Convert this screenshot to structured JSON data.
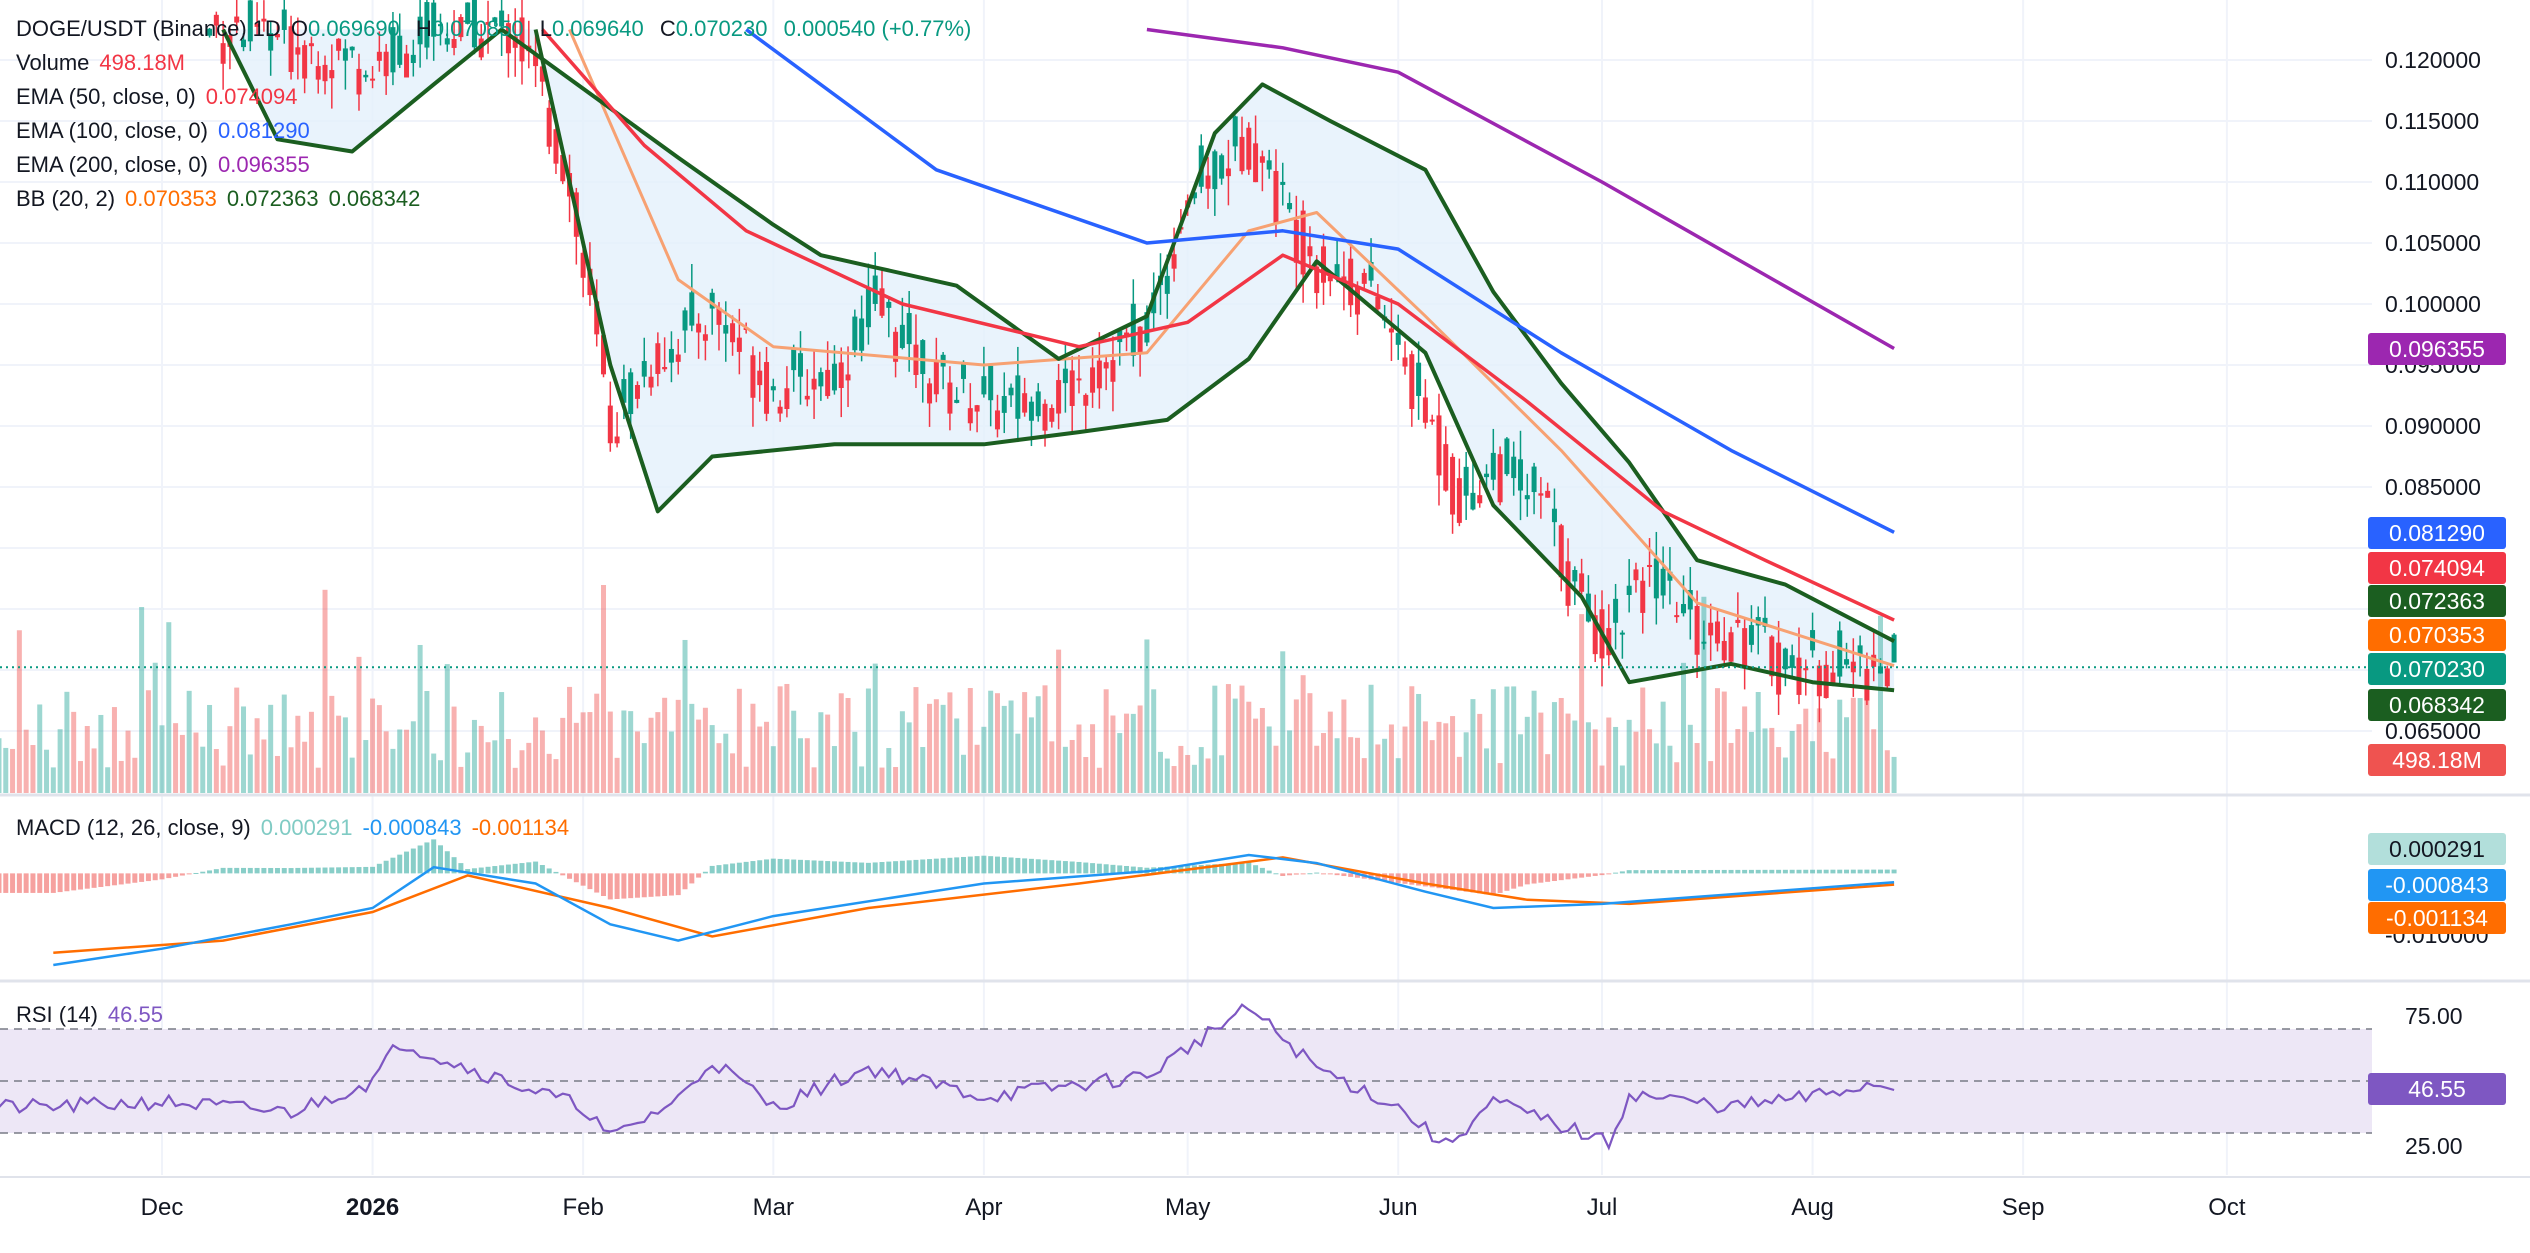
{
  "header": {
    "symbol": "DOGE/USDT (Binance)",
    "interval": "1D",
    "open_label": "O",
    "open": "0.069690",
    "high_label": "H",
    "high": "0.070850",
    "low_label": "L",
    "low": "0.069640",
    "close_label": "C",
    "close": "0.070230",
    "change": "0.000540 (+0.77%)"
  },
  "legend": {
    "volume": {
      "label": "Volume",
      "value": "498.18M"
    },
    "ema50": {
      "label": "EMA (50, close, 0)",
      "value": "0.074094"
    },
    "ema100": {
      "label": "EMA (100, close, 0)",
      "value": "0.081290"
    },
    "ema200": {
      "label": "EMA (200, close, 0)",
      "value": "0.096355"
    },
    "bb": {
      "label": "BB (20, 2)",
      "basis": "0.070353",
      "upper": "0.072363",
      "lower": "0.068342"
    },
    "macd": {
      "label": "MACD (12, 26, close, 9)",
      "hist": "0.000291",
      "macd": "-0.000843",
      "signal": "-0.001134"
    },
    "rsi": {
      "label": "RSI (14)",
      "value": "46.55"
    }
  },
  "colors": {
    "up": "#26a69a",
    "down": "#ef5350",
    "up_candle": "#089981",
    "down_candle": "#f23645",
    "ema50": "#f23645",
    "ema100": "#2962ff",
    "ema200": "#9c27b0",
    "bb_band": "#1b5e20",
    "bb_basis": "#f7a172",
    "bb_fill": "#e3f0fb",
    "macd": "#2196f3",
    "signal": "#ff6d00",
    "rsi": "#7e57c2",
    "rsi_fill": "#ede7f6"
  },
  "chart_data": [
    {
      "type": "candlestick",
      "title": "DOGE/USDT (Binance) 1D",
      "x_ticks": [
        "Dec",
        "2026",
        "Feb",
        "Mar",
        "Apr",
        "May",
        "Jun",
        "Jul",
        "Aug",
        "Sep",
        "Oct"
      ],
      "y_ticks": [
        "0.120000",
        "0.115000",
        "0.110000",
        "0.105000",
        "0.100000",
        "0.095000",
        "0.090000",
        "0.085000",
        "0.065000"
      ],
      "ylim": [
        0.0625,
        0.1225
      ],
      "price_path": [
        [
          "2025-12-10",
          0.1225
        ],
        [
          "2025-12-20",
          0.1215
        ],
        [
          "2026-01-01",
          0.1195
        ],
        [
          "2026-01-10",
          0.1225
        ],
        [
          "2026-01-22",
          0.1225
        ],
        [
          "2026-01-29",
          0.112
        ],
        [
          "2026-02-02",
          0.099
        ],
        [
          "2026-02-05",
          0.09
        ],
        [
          "2026-02-10",
          0.095
        ],
        [
          "2026-02-20",
          0.0995
        ],
        [
          "2026-03-01",
          0.093
        ],
        [
          "2026-03-10",
          0.0945
        ],
        [
          "2026-03-16",
          0.1
        ],
        [
          "2026-03-25",
          0.0935
        ],
        [
          "2026-04-05",
          0.0915
        ],
        [
          "2026-04-15",
          0.0935
        ],
        [
          "2026-04-25",
          0.0985
        ],
        [
          "2026-05-01",
          0.109
        ],
        [
          "2026-05-10",
          0.114
        ],
        [
          "2026-05-15",
          0.108
        ],
        [
          "2026-05-20",
          0.1035
        ],
        [
          "2026-05-28",
          0.101
        ],
        [
          "2026-06-05",
          0.091
        ],
        [
          "2026-06-10",
          0.084
        ],
        [
          "2026-06-15",
          0.087
        ],
        [
          "2026-06-22",
          0.084
        ],
        [
          "2026-06-28",
          0.075
        ],
        [
          "2026-07-02",
          0.073
        ],
        [
          "2026-07-06",
          0.078
        ],
        [
          "2026-07-15",
          0.0735
        ],
        [
          "2026-07-22",
          0.073
        ],
        [
          "2026-07-28",
          0.0705
        ],
        [
          "2026-08-05",
          0.0705
        ],
        [
          "2026-08-12",
          0.07023
        ]
      ],
      "ema50": [
        [
          "2026-01-26",
          0.1225
        ],
        [
          "2026-02-10",
          0.113
        ],
        [
          "2026-02-25",
          0.106
        ],
        [
          "2026-03-20",
          0.1
        ],
        [
          "2026-04-15",
          0.0965
        ],
        [
          "2026-05-01",
          0.0985
        ],
        [
          "2026-05-15",
          0.104
        ],
        [
          "2026-06-01",
          0.1
        ],
        [
          "2026-06-20",
          0.092
        ],
        [
          "2026-07-10",
          0.083
        ],
        [
          "2026-07-25",
          0.079
        ],
        [
          "2026-08-13",
          0.074094
        ]
      ],
      "ema100": [
        [
          "2026-02-25",
          0.1225
        ],
        [
          "2026-03-25",
          0.111
        ],
        [
          "2026-04-25",
          0.105
        ],
        [
          "2026-05-15",
          0.106
        ],
        [
          "2026-06-01",
          0.1045
        ],
        [
          "2026-06-25",
          0.096
        ],
        [
          "2026-07-20",
          0.088
        ],
        [
          "2026-08-13",
          0.08129
        ]
      ],
      "ema200": [
        [
          "2026-04-25",
          0.1225
        ],
        [
          "2026-05-15",
          0.121
        ],
        [
          "2026-06-01",
          0.119
        ],
        [
          "2026-07-01",
          0.11
        ],
        [
          "2026-08-13",
          0.096355
        ]
      ],
      "bb_upper": [
        [
          "2025-12-10",
          0.1225
        ],
        [
          "2025-12-18",
          0.1135
        ],
        [
          "2025-12-29",
          0.1125
        ],
        [
          "2026-01-10",
          0.118
        ],
        [
          "2026-01-20",
          0.1225
        ],
        [
          "2026-02-15",
          0.112
        ],
        [
          "2026-03-01",
          0.1065
        ],
        [
          "2026-03-08",
          0.104
        ],
        [
          "2026-03-16",
          0.103
        ],
        [
          "2026-03-28",
          0.1015
        ],
        [
          "2026-04-12",
          0.0955
        ],
        [
          "2026-04-25",
          0.099
        ],
        [
          "2026-05-05",
          0.114
        ],
        [
          "2026-05-12",
          0.118
        ],
        [
          "2026-05-22",
          0.115
        ],
        [
          "2026-06-05",
          0.111
        ],
        [
          "2026-06-15",
          0.101
        ],
        [
          "2026-06-25",
          0.0935
        ],
        [
          "2026-07-05",
          0.087
        ],
        [
          "2026-07-15",
          0.079
        ],
        [
          "2026-07-28",
          0.077
        ],
        [
          "2026-08-13",
          0.072363
        ]
      ],
      "bb_lower": [
        [
          "2026-01-25",
          0.1225
        ],
        [
          "2026-02-05",
          0.095
        ],
        [
          "2026-02-12",
          0.083
        ],
        [
          "2026-02-20",
          0.0875
        ],
        [
          "2026-03-10",
          0.0885
        ],
        [
          "2026-04-01",
          0.0885
        ],
        [
          "2026-04-15",
          0.0895
        ],
        [
          "2026-04-28",
          0.0905
        ],
        [
          "2026-05-10",
          0.0955
        ],
        [
          "2026-05-20",
          0.1035
        ],
        [
          "2026-06-05",
          0.096
        ],
        [
          "2026-06-15",
          0.0835
        ],
        [
          "2026-06-28",
          0.076
        ],
        [
          "2026-07-05",
          0.069
        ],
        [
          "2026-07-20",
          0.0705
        ],
        [
          "2026-08-01",
          0.069
        ],
        [
          "2026-08-13",
          0.068342
        ]
      ],
      "bb_basis": [
        [
          "2026-01-30",
          0.1225
        ],
        [
          "2026-02-15",
          0.102
        ],
        [
          "2026-03-01",
          0.0965
        ],
        [
          "2026-04-01",
          0.095
        ],
        [
          "2026-04-25",
          0.096
        ],
        [
          "2026-05-10",
          0.106
        ],
        [
          "2026-05-20",
          0.1075
        ],
        [
          "2026-06-05",
          0.099
        ],
        [
          "2026-06-25",
          0.088
        ],
        [
          "2026-07-15",
          0.0755
        ],
        [
          "2026-08-13",
          0.070353
        ]
      ],
      "last_price": 0.07023,
      "price_badges": [
        "0.096355",
        "0.081290",
        "0.074094",
        "0.072363",
        "0.070353",
        "0.070230",
        "0.068342",
        "498.18M"
      ]
    },
    {
      "type": "bar",
      "title": "Volume",
      "last_value": "498.18M",
      "pattern": "daily volume bars, green on up days and red on down days, spikes near Jan 1, early Feb, mid Mar, May and mid May"
    },
    {
      "type": "line",
      "title": "MACD (12, 26, close, 9)",
      "y_ticks": [
        "-0.010000"
      ],
      "ylim": [
        -0.0125,
        0.0035
      ],
      "macd": [
        [
          "2025-11-15",
          -0.011
        ],
        [
          "2025-12-01",
          -0.009
        ],
        [
          "2025-12-20",
          -0.006
        ],
        [
          "2026-01-01",
          -0.004
        ],
        [
          "2026-01-10",
          0.001
        ],
        [
          "2026-01-25",
          -0.001
        ],
        [
          "2026-02-05",
          -0.006
        ],
        [
          "2026-02-15",
          -0.008
        ],
        [
          "2026-03-01",
          -0.005
        ],
        [
          "2026-04-01",
          -0.001
        ],
        [
          "2026-04-25",
          0.0005
        ],
        [
          "2026-05-10",
          0.0025
        ],
        [
          "2026-05-20",
          0.0015
        ],
        [
          "2026-06-05",
          -0.002
        ],
        [
          "2026-06-15",
          -0.004
        ],
        [
          "2026-07-01",
          -0.0035
        ],
        [
          "2026-08-13",
          -0.000843
        ]
      ],
      "signal": [
        [
          "2025-11-15",
          -0.0095
        ],
        [
          "2025-12-10",
          -0.008
        ],
        [
          "2026-01-01",
          -0.0045
        ],
        [
          "2026-01-15",
          0.0
        ],
        [
          "2026-02-05",
          -0.004
        ],
        [
          "2026-02-20",
          -0.0075
        ],
        [
          "2026-03-15",
          -0.004
        ],
        [
          "2026-04-15",
          -0.001
        ],
        [
          "2026-05-15",
          0.0022
        ],
        [
          "2026-06-05",
          -0.001
        ],
        [
          "2026-06-20",
          -0.003
        ],
        [
          "2026-07-05",
          -0.0035
        ],
        [
          "2026-08-13",
          -0.001134
        ]
      ],
      "histogram_last": 0.000291
    },
    {
      "type": "line",
      "title": "RSI (14)",
      "y_ticks": [
        "75.00",
        "25.00"
      ],
      "ylim": [
        10,
        90
      ],
      "bands": [
        30,
        50,
        70
      ],
      "rsi": [
        [
          "2025-11-15",
          40
        ],
        [
          "2025-12-01",
          42
        ],
        [
          "2025-12-20",
          38
        ],
        [
          "2026-01-01",
          50
        ],
        [
          "2026-01-05",
          65
        ],
        [
          "2026-01-15",
          55
        ],
        [
          "2026-02-01",
          40
        ],
        [
          "2026-02-05",
          28
        ],
        [
          "2026-02-15",
          43
        ],
        [
          "2026-02-20",
          58
        ],
        [
          "2026-03-01",
          40
        ],
        [
          "2026-03-15",
          55
        ],
        [
          "2026-04-01",
          44
        ],
        [
          "2026-04-25",
          52
        ],
        [
          "2026-05-05",
          70
        ],
        [
          "2026-05-10",
          78
        ],
        [
          "2026-05-20",
          55
        ],
        [
          "2026-06-01",
          40
        ],
        [
          "2026-06-08",
          25
        ],
        [
          "2026-06-15",
          42
        ],
        [
          "2026-06-28",
          30
        ],
        [
          "2026-07-02",
          26
        ],
        [
          "2026-07-05",
          45
        ],
        [
          "2026-07-20",
          40
        ],
        [
          "2026-08-01",
          44
        ],
        [
          "2026-08-10",
          49
        ],
        [
          "2026-08-13",
          46.55
        ]
      ]
    }
  ]
}
